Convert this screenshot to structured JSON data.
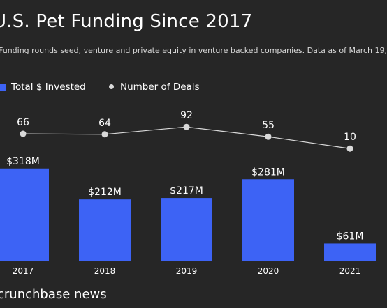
{
  "chart_data": {
    "type": "bar",
    "title": "U.S. Pet Funding Since 2017",
    "subtitle": "Funding rounds seed, venture and private equity in venture backed companies. Data as of March 19,",
    "categories": [
      "2017",
      "2018",
      "2019",
      "2020",
      "2021"
    ],
    "series": [
      {
        "name": "Total $ Invested",
        "type": "bar",
        "values": [
          318,
          212,
          217,
          281,
          61
        ],
        "labels": [
          "$318M",
          "$212M",
          "$217M",
          "$281M",
          "$61M"
        ],
        "color": "#3d63f5"
      },
      {
        "name": "Number of Deals",
        "type": "line",
        "values": [
          66,
          64,
          92,
          55,
          10
        ],
        "labels": [
          "66",
          "64",
          "92",
          "55",
          "10"
        ],
        "color": "#d9d9d9"
      }
    ],
    "legend_position": "top-left",
    "grid": false
  },
  "brand": "crunchbase news",
  "colors": {
    "background": "#262626",
    "bar": "#3d63f5",
    "line": "#d9d9d9",
    "text": "#ffffff"
  }
}
